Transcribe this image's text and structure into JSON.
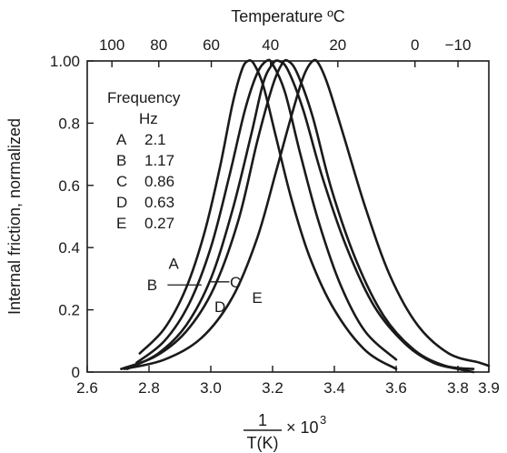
{
  "chart_data": {
    "type": "line",
    "top_axis": {
      "title": "Temperature ºC",
      "tick_labels": [
        "100",
        "80",
        "60",
        "40",
        "20",
        "0",
        "−10"
      ],
      "tick_temps_c": [
        100,
        80,
        60,
        40,
        20,
        0,
        -10
      ]
    },
    "xlabel_numerator": "1",
    "xlabel_denominator": "T(K)",
    "xlabel_suffix": "× 10",
    "xlabel_exponent": "3",
    "ylabel": "Internal friction, normalized",
    "xlim": [
      2.6,
      3.9
    ],
    "ylim": [
      0,
      1.0
    ],
    "x_ticks": [
      2.6,
      2.8,
      3.0,
      3.2,
      3.4,
      3.6,
      3.8,
      3.9
    ],
    "x_tick_labels": [
      "2.6",
      "2.8",
      "3.0",
      "3.2",
      "3.4",
      "3.6",
      "3.8",
      "3.9"
    ],
    "y_ticks": [
      0,
      0.2,
      0.4,
      0.6,
      0.8,
      1.0
    ],
    "y_tick_labels": [
      "0",
      "0.2",
      "0.4",
      "0.6",
      "0.8",
      "1.00"
    ],
    "legend": {
      "title": "Frequency",
      "unit": "Hz",
      "entries": [
        {
          "key": "A",
          "value": "2.1"
        },
        {
          "key": "B",
          "value": "1.17"
        },
        {
          "key": "C",
          "value": "0.86"
        },
        {
          "key": "D",
          "value": "0.63"
        },
        {
          "key": "E",
          "value": "0.27"
        }
      ]
    },
    "series": [
      {
        "name": "A",
        "x": [
          2.77,
          2.85,
          2.92,
          2.98,
          3.03,
          3.07,
          3.1,
          3.12,
          3.14,
          3.17,
          3.21,
          3.26,
          3.32,
          3.4,
          3.5,
          3.6
        ],
        "y": [
          0.06,
          0.14,
          0.27,
          0.45,
          0.66,
          0.86,
          0.97,
          1.0,
          0.99,
          0.92,
          0.76,
          0.56,
          0.37,
          0.2,
          0.07,
          0.01
        ]
      },
      {
        "name": "B",
        "x": [
          2.76,
          2.85,
          2.93,
          3.0,
          3.06,
          3.11,
          3.15,
          3.18,
          3.2,
          3.24,
          3.29,
          3.35,
          3.42,
          3.5,
          3.6
        ],
        "y": [
          0.03,
          0.1,
          0.22,
          0.4,
          0.63,
          0.84,
          0.96,
          1.0,
          0.99,
          0.9,
          0.7,
          0.48,
          0.28,
          0.13,
          0.04
        ]
      },
      {
        "name": "C",
        "x": [
          2.73,
          2.83,
          2.92,
          3.0,
          3.07,
          3.13,
          3.17,
          3.2,
          3.22,
          3.25,
          3.3,
          3.36,
          3.44,
          3.53,
          3.63,
          3.72,
          3.8,
          3.85
        ],
        "y": [
          0.01,
          0.06,
          0.15,
          0.3,
          0.52,
          0.76,
          0.93,
          0.99,
          1.0,
          0.97,
          0.84,
          0.63,
          0.4,
          0.21,
          0.09,
          0.03,
          0.01,
          0.0
        ]
      },
      {
        "name": "D",
        "x": [
          2.71,
          2.82,
          2.92,
          3.01,
          3.09,
          3.15,
          3.2,
          3.23,
          3.25,
          3.28,
          3.33,
          3.39,
          3.47,
          3.56,
          3.66,
          3.76,
          3.85
        ],
        "y": [
          0.01,
          0.05,
          0.13,
          0.27,
          0.49,
          0.74,
          0.92,
          0.99,
          1.0,
          0.96,
          0.82,
          0.59,
          0.36,
          0.18,
          0.07,
          0.02,
          0.01
        ]
      },
      {
        "name": "E",
        "x": [
          2.72,
          2.85,
          2.97,
          3.07,
          3.15,
          3.21,
          3.26,
          3.3,
          3.33,
          3.35,
          3.38,
          3.43,
          3.5,
          3.58,
          3.67,
          3.77,
          3.87,
          3.9
        ],
        "y": [
          0.01,
          0.04,
          0.11,
          0.24,
          0.43,
          0.64,
          0.82,
          0.95,
          1.0,
          0.99,
          0.92,
          0.76,
          0.53,
          0.31,
          0.15,
          0.06,
          0.03,
          0.02
        ]
      }
    ],
    "curve_labels": [
      {
        "text": "A",
        "x": 2.88,
        "y": 0.35
      },
      {
        "text": "B",
        "x": 2.81,
        "y": 0.28
      },
      {
        "text": "C",
        "x": 3.08,
        "y": 0.29
      },
      {
        "text": "D",
        "x": 3.03,
        "y": 0.21
      },
      {
        "text": "E",
        "x": 3.15,
        "y": 0.24
      }
    ],
    "label_line": {
      "x": [
        2.86,
        2.97
      ],
      "y": 0.28
    },
    "label_line_c": {
      "x": [
        3.0,
        3.06
      ],
      "y": 0.29
    },
    "grid": false
  }
}
